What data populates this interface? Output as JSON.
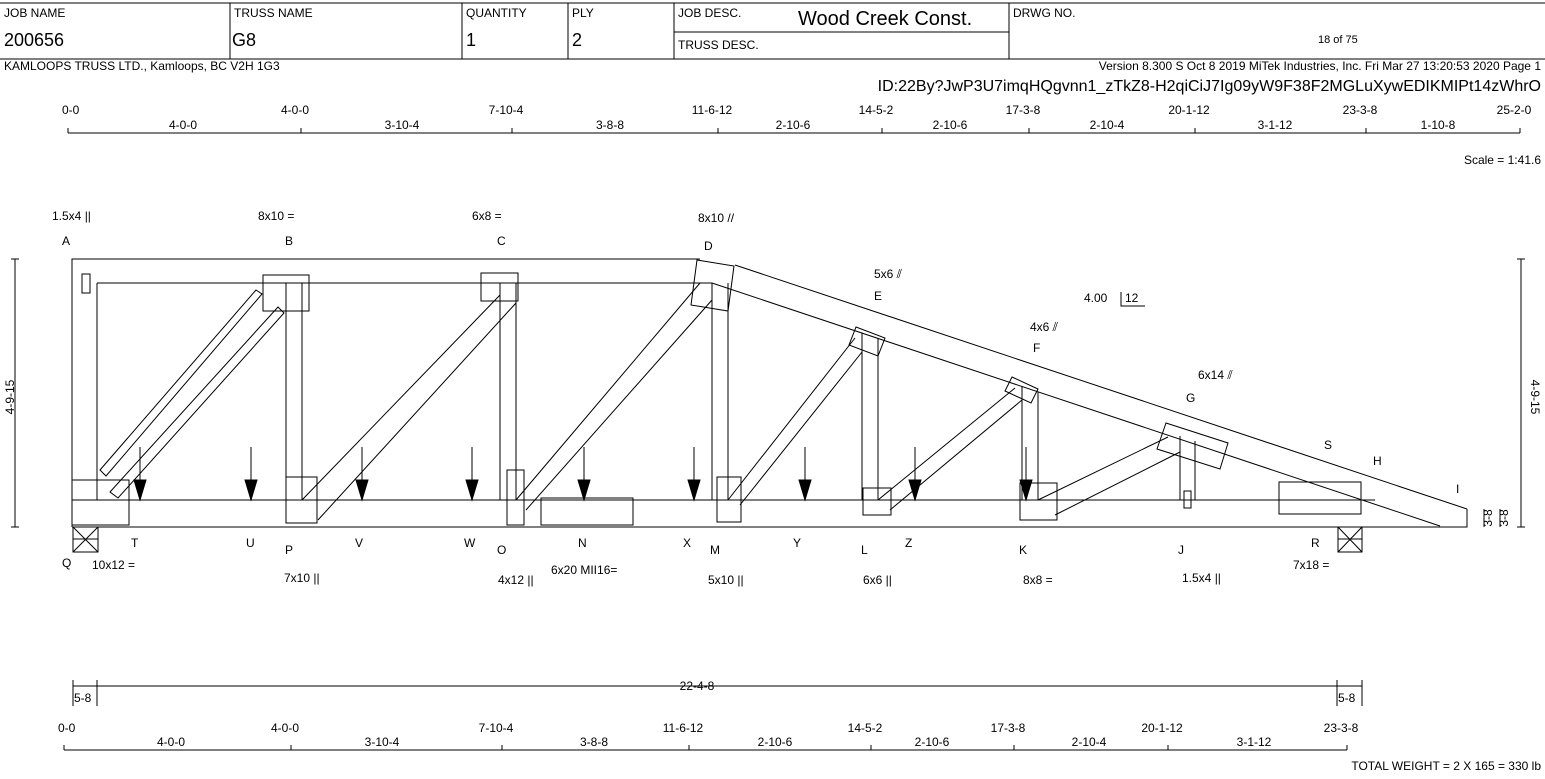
{
  "header": {
    "job_name_label": "JOB NAME",
    "job_name": "200656",
    "truss_name_label": "TRUSS NAME",
    "truss_name": "G8",
    "quantity_label": "QUANTITY",
    "quantity": "1",
    "ply_label": "PLY",
    "ply": "2",
    "job_desc_label": "JOB DESC.",
    "job_desc": "Wood Creek Const.",
    "truss_desc_label": "TRUSS DESC.",
    "drwg_no_label": "DRWG NO.",
    "drwg_no": "18 of 75"
  },
  "info": {
    "company": "KAMLOOPS TRUSS LTD., Kamloops, BC V2H 1G3",
    "version": "Version 8.300 S Oct  8 2019 MiTek Industries, Inc.  Fri Mar 27 13:20:53 2020  Page 1",
    "id": "ID:22By?JwP3U7imqHQgvnn1_zTkZ8-H2qiCiJ7Ig09yW9F38F2MGLuXywEDIKMIPt14zWhrO"
  },
  "top_dims": {
    "marks": [
      "0-0",
      "4-0-0",
      "7-10-4",
      "11-6-12",
      "14-5-2",
      "17-3-8",
      "20-1-12",
      "23-3-8",
      "25-2-0"
    ],
    "spans": [
      "4-0-0",
      "3-10-4",
      "3-8-8",
      "2-10-6",
      "2-10-6",
      "2-10-4",
      "3-1-12",
      "1-10-8"
    ]
  },
  "scale": "Scale = 1:41.6",
  "pitch": {
    "rise": "4.00",
    "run": "12"
  },
  "top_plates": [
    "1.5x4 ||",
    "8x10 =",
    "6x8 =",
    "8x10 //",
    "5x6 ⫽",
    "4x6 ⫽",
    "6x14 ⫽"
  ],
  "joints": [
    "A",
    "B",
    "C",
    "D",
    "E",
    "F",
    "G",
    "S",
    "H",
    "I",
    "T",
    "U",
    "P",
    "V",
    "W",
    "O",
    "N",
    "X",
    "M",
    "Y",
    "L",
    "Z",
    "K",
    "J",
    "R",
    "Q"
  ],
  "bottom_plates": [
    "10x12 =",
    "7x10 ||",
    "4x12 ||",
    "6x20 MII16=",
    "5x10 ||",
    "6x6 ||",
    "8x8 =",
    "1.5x4 ||",
    "7x18 ="
  ],
  "heights": {
    "left": "4-9-15",
    "right": "4-9-15",
    "end": [
      "3-8",
      "3-8"
    ]
  },
  "overall": {
    "left": "5-8",
    "span": "22-4-8",
    "right": "5-8"
  },
  "bottom_dims": {
    "marks": [
      "0-0",
      "4-0-0",
      "7-10-4",
      "11-6-12",
      "14-5-2",
      "17-3-8",
      "20-1-12",
      "23-3-8"
    ],
    "spans": [
      "4-0-0",
      "3-10-4",
      "3-8-8",
      "2-10-6",
      "2-10-6",
      "2-10-4",
      "3-1-12"
    ]
  },
  "total_weight": "TOTAL WEIGHT =  2 X 165 = 330 lb"
}
